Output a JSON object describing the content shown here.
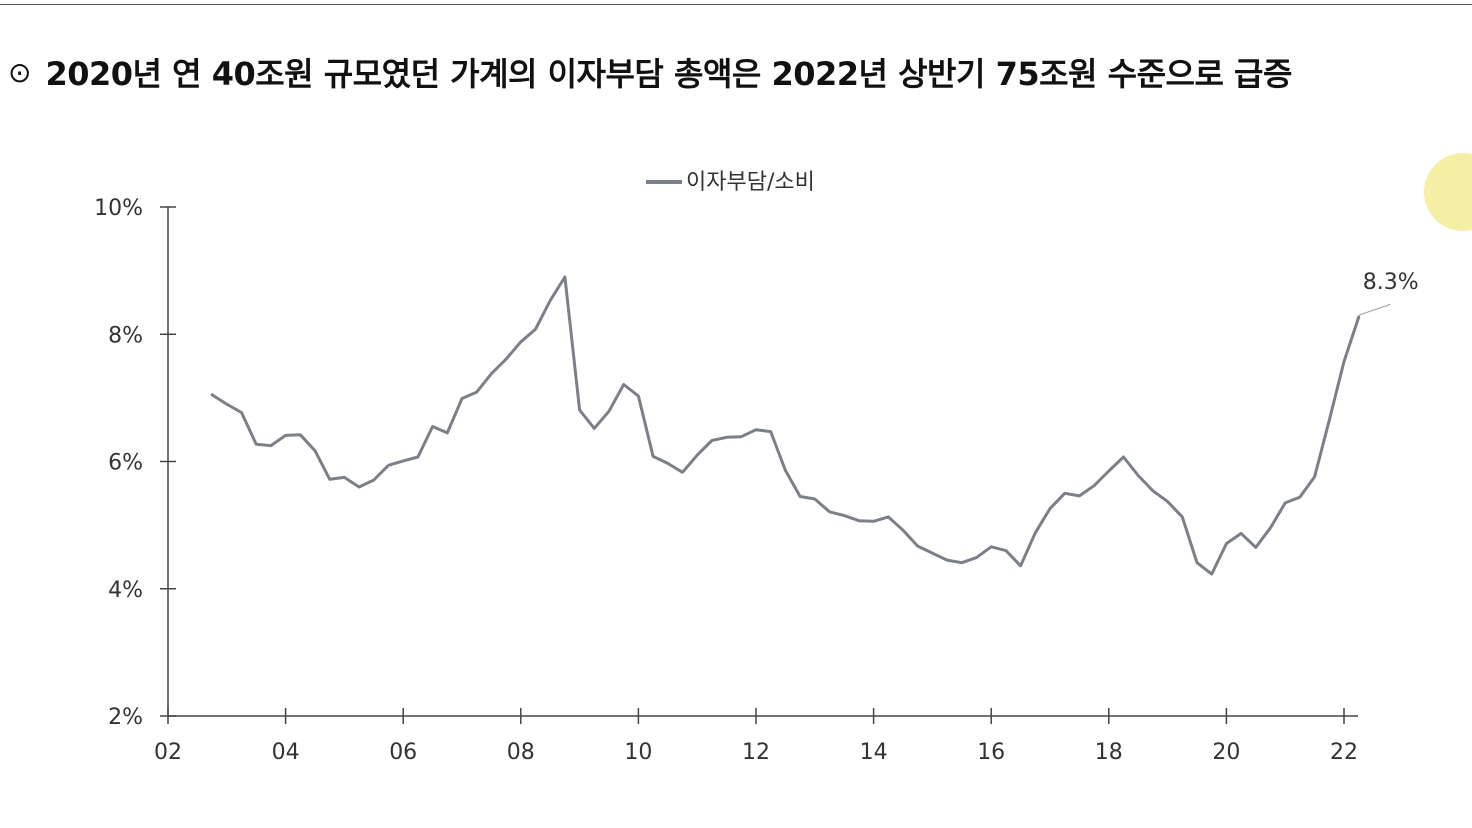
{
  "header": {
    "bullet": "⊙",
    "title": "2020년 연 40조원 규모였던 가계의 이자부담 총액은 2022년 상반기 75조원 수준으로 급증"
  },
  "colors": {
    "line": "#7b8088",
    "axis": "#444444",
    "text": "#333333",
    "decoration": "#f4efa4"
  },
  "chart_data": {
    "type": "line",
    "title": "",
    "xlabel": "",
    "ylabel": "",
    "legend": {
      "position": "top-center",
      "entries": [
        "이자부담/소비"
      ]
    },
    "grid": false,
    "xlim": [
      2002,
      2023
    ],
    "ylim": [
      2,
      10
    ],
    "x_ticks": [
      2002,
      2004,
      2006,
      2008,
      2010,
      2012,
      2014,
      2016,
      2018,
      2020,
      2022
    ],
    "x_tick_labels": [
      "02",
      "04",
      "06",
      "08",
      "10",
      "12",
      "14",
      "16",
      "18",
      "20",
      "22"
    ],
    "y_ticks": [
      2,
      4,
      6,
      8,
      10
    ],
    "y_tick_labels": [
      "2%",
      "4%",
      "6%",
      "8%",
      "10%"
    ],
    "annotation": {
      "text": "8.3%",
      "x": 2022.25,
      "y": 8.3
    },
    "series": [
      {
        "name": "이자부담/소비",
        "x": [
          2002.75,
          2003.0,
          2003.25,
          2003.5,
          2003.75,
          2004.0,
          2004.25,
          2004.5,
          2004.75,
          2005.0,
          2005.25,
          2005.5,
          2005.75,
          2006.0,
          2006.25,
          2006.5,
          2006.75,
          2007.0,
          2007.25,
          2007.5,
          2007.75,
          2008.0,
          2008.25,
          2008.5,
          2008.75,
          2009.0,
          2009.25,
          2009.5,
          2009.75,
          2010.0,
          2010.25,
          2010.5,
          2010.75,
          2011.0,
          2011.25,
          2011.5,
          2011.75,
          2012.0,
          2012.25,
          2012.5,
          2012.75,
          2013.0,
          2013.25,
          2013.5,
          2013.75,
          2014.0,
          2014.25,
          2014.5,
          2014.75,
          2015.0,
          2015.25,
          2015.5,
          2015.75,
          2016.0,
          2016.25,
          2016.5,
          2016.75,
          2017.0,
          2017.25,
          2017.5,
          2017.75,
          2018.0,
          2018.25,
          2018.5,
          2018.75,
          2019.0,
          2019.25,
          2019.5,
          2019.75,
          2020.0,
          2020.25,
          2020.5,
          2020.75,
          2021.0,
          2021.25,
          2021.5,
          2021.75,
          2022.0,
          2022.25
        ],
        "values": [
          7.05,
          6.9,
          6.77,
          6.27,
          6.25,
          6.41,
          6.42,
          6.17,
          5.72,
          5.75,
          5.6,
          5.71,
          5.94,
          6.01,
          6.07,
          6.55,
          6.45,
          6.99,
          7.09,
          7.38,
          7.61,
          7.88,
          8.08,
          8.53,
          8.9,
          6.81,
          6.52,
          6.79,
          7.21,
          7.03,
          6.08,
          5.97,
          5.83,
          6.1,
          6.33,
          6.38,
          6.39,
          6.5,
          6.47,
          5.86,
          5.45,
          5.41,
          5.21,
          5.15,
          5.07,
          5.06,
          5.13,
          4.92,
          4.67,
          4.56,
          4.45,
          4.41,
          4.49,
          4.66,
          4.6,
          4.36,
          4.88,
          5.26,
          5.5,
          5.46,
          5.62,
          5.85,
          6.07,
          5.78,
          5.54,
          5.37,
          5.13,
          4.41,
          4.23,
          4.71,
          4.87,
          4.65,
          4.96,
          5.35,
          5.44,
          5.76,
          6.65,
          7.57,
          8.27
        ]
      }
    ]
  }
}
